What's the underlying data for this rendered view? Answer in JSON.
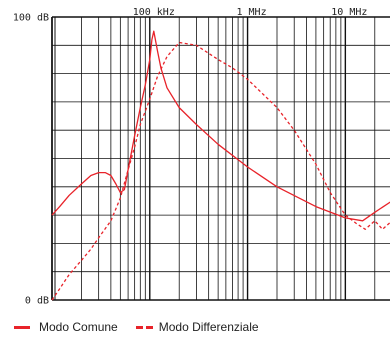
{
  "chart_data": {
    "type": "line",
    "x_scale": "log",
    "y_scale": "linear",
    "xlim": [
      10000,
      30000000
    ],
    "ylim": [
      0,
      100
    ],
    "y_ticks": [
      {
        "value": 100,
        "label": "100 dB"
      },
      {
        "value": 0,
        "label": "0 dB"
      }
    ],
    "x_ticks": [
      {
        "value": 100000,
        "label": "100 kHz"
      },
      {
        "value": 1000000,
        "label": "1 MHz"
      },
      {
        "value": 10000000,
        "label": "10 MHz"
      }
    ],
    "grid": true,
    "legend_position": "bottom-left",
    "series": [
      {
        "name": "Modo Comune",
        "style": "solid",
        "color": "#e8232a",
        "x": [
          10000,
          12000,
          15000,
          20000,
          25000,
          30000,
          35000,
          40000,
          45000,
          50000,
          55000,
          60000,
          70000,
          80000,
          90000,
          100000,
          105000,
          110000,
          120000,
          130000,
          150000,
          200000,
          300000,
          500000,
          1000000,
          2000000,
          5000000,
          10000000,
          15000000,
          20000000,
          30000000
        ],
        "y": [
          30,
          33,
          37,
          41,
          44,
          45,
          45,
          44,
          41,
          38,
          39,
          46,
          58,
          68,
          76,
          85,
          92,
          95,
          88,
          82,
          75,
          68,
          62,
          55,
          47,
          40,
          33,
          29,
          28,
          31,
          35
        ]
      },
      {
        "name": "Modo Differenziale",
        "style": "dashed",
        "color": "#e8232a",
        "x": [
          10000,
          12000,
          15000,
          20000,
          25000,
          30000,
          40000,
          50000,
          60000,
          70000,
          80000,
          100000,
          120000,
          150000,
          200000,
          300000,
          500000,
          700000,
          1000000,
          2000000,
          3000000,
          5000000,
          7000000,
          10000000,
          13000000,
          16000000,
          20000000,
          24000000,
          30000000
        ],
        "y": [
          0,
          4,
          9,
          14,
          18,
          22,
          28,
          36,
          46,
          54,
          62,
          71,
          79,
          86,
          91,
          90,
          85,
          82,
          78,
          68,
          60,
          48,
          38,
          30,
          27,
          25,
          28,
          25,
          28
        ]
      }
    ]
  },
  "legend": {
    "common_label": "Modo Comune",
    "differential_label": "Modo Differenziale"
  }
}
